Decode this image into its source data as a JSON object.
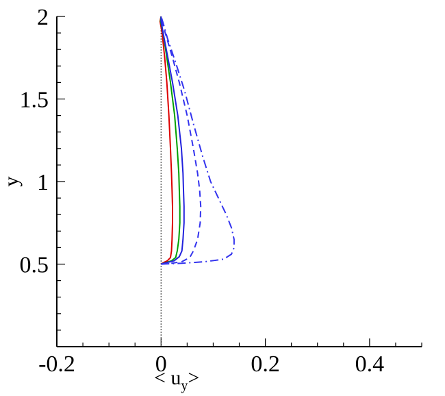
{
  "chart_data": {
    "type": "line",
    "title": "",
    "xlabel": {
      "pre": "< u",
      "sub": "y",
      "post": ">"
    },
    "ylabel": "y",
    "xlim": [
      -0.2,
      0.5
    ],
    "ylim": [
      0.0,
      2.0
    ],
    "x_ticks": [
      "-0.2",
      "0",
      "0.2",
      "0.4"
    ],
    "y_ticks": [
      "0.5",
      "1",
      "1.5",
      "2"
    ],
    "grid": false,
    "legend": "none",
    "reference_line": {
      "x": 0,
      "style": "dotted",
      "color": "#555555"
    },
    "series": [
      {
        "color": "#dd0000",
        "style": "solid",
        "points": [
          [
            0,
            0.5
          ],
          [
            0.005,
            0.51
          ],
          [
            0.012,
            0.52
          ],
          [
            0.018,
            0.54
          ],
          [
            0.02,
            0.58
          ],
          [
            0.021,
            0.65
          ],
          [
            0.022,
            0.75
          ],
          [
            0.022,
            0.85
          ],
          [
            0.021,
            0.95
          ],
          [
            0.02,
            1.05
          ],
          [
            0.018,
            1.2
          ],
          [
            0.015,
            1.4
          ],
          [
            0.011,
            1.6
          ],
          [
            0.007,
            1.75
          ],
          [
            0.002,
            1.9
          ],
          [
            -0.002,
            1.97
          ],
          [
            0,
            2.0
          ]
        ]
      },
      {
        "color": "#00a000",
        "style": "solid",
        "points": [
          [
            0,
            0.5
          ],
          [
            0.01,
            0.51
          ],
          [
            0.02,
            0.52
          ],
          [
            0.028,
            0.54
          ],
          [
            0.031,
            0.58
          ],
          [
            0.034,
            0.65
          ],
          [
            0.036,
            0.75
          ],
          [
            0.036,
            0.85
          ],
          [
            0.035,
            0.95
          ],
          [
            0.034,
            1.05
          ],
          [
            0.031,
            1.2
          ],
          [
            0.026,
            1.4
          ],
          [
            0.018,
            1.6
          ],
          [
            0.011,
            1.75
          ],
          [
            0.004,
            1.9
          ],
          [
            -0.001,
            1.97
          ],
          [
            0,
            2.0
          ]
        ]
      },
      {
        "color": "#2222dd",
        "style": "solid",
        "points": [
          [
            0,
            0.5
          ],
          [
            0.012,
            0.51
          ],
          [
            0.025,
            0.52
          ],
          [
            0.035,
            0.545
          ],
          [
            0.04,
            0.58
          ],
          [
            0.042,
            0.65
          ],
          [
            0.044,
            0.75
          ],
          [
            0.044,
            0.85
          ],
          [
            0.043,
            0.95
          ],
          [
            0.042,
            1.05
          ],
          [
            0.039,
            1.2
          ],
          [
            0.032,
            1.4
          ],
          [
            0.022,
            1.6
          ],
          [
            0.013,
            1.75
          ],
          [
            0.004,
            1.9
          ],
          [
            0,
            1.97
          ],
          [
            0,
            2.0
          ]
        ]
      },
      {
        "color": "#3333ee",
        "style": "dashed",
        "points": [
          [
            0,
            0.5
          ],
          [
            0.02,
            0.505
          ],
          [
            0.04,
            0.515
          ],
          [
            0.055,
            0.54
          ],
          [
            0.062,
            0.58
          ],
          [
            0.07,
            0.65
          ],
          [
            0.075,
            0.75
          ],
          [
            0.076,
            0.85
          ],
          [
            0.074,
            0.95
          ],
          [
            0.07,
            1.05
          ],
          [
            0.062,
            1.2
          ],
          [
            0.05,
            1.4
          ],
          [
            0.035,
            1.6
          ],
          [
            0.022,
            1.75
          ],
          [
            0.008,
            1.9
          ],
          [
            0.002,
            1.97
          ],
          [
            0,
            2.0
          ]
        ]
      },
      {
        "color": "#3333ee",
        "style": "dashdot",
        "points": [
          [
            0,
            0.5
          ],
          [
            0.04,
            0.505
          ],
          [
            0.085,
            0.515
          ],
          [
            0.12,
            0.53
          ],
          [
            0.135,
            0.56
          ],
          [
            0.14,
            0.6
          ],
          [
            0.14,
            0.65
          ],
          [
            0.135,
            0.72
          ],
          [
            0.125,
            0.8
          ],
          [
            0.11,
            0.9
          ],
          [
            0.095,
            1.0
          ],
          [
            0.08,
            1.15
          ],
          [
            0.062,
            1.35
          ],
          [
            0.045,
            1.55
          ],
          [
            0.028,
            1.72
          ],
          [
            0.012,
            1.87
          ],
          [
            0.004,
            1.96
          ],
          [
            0,
            2.0
          ]
        ]
      }
    ]
  }
}
